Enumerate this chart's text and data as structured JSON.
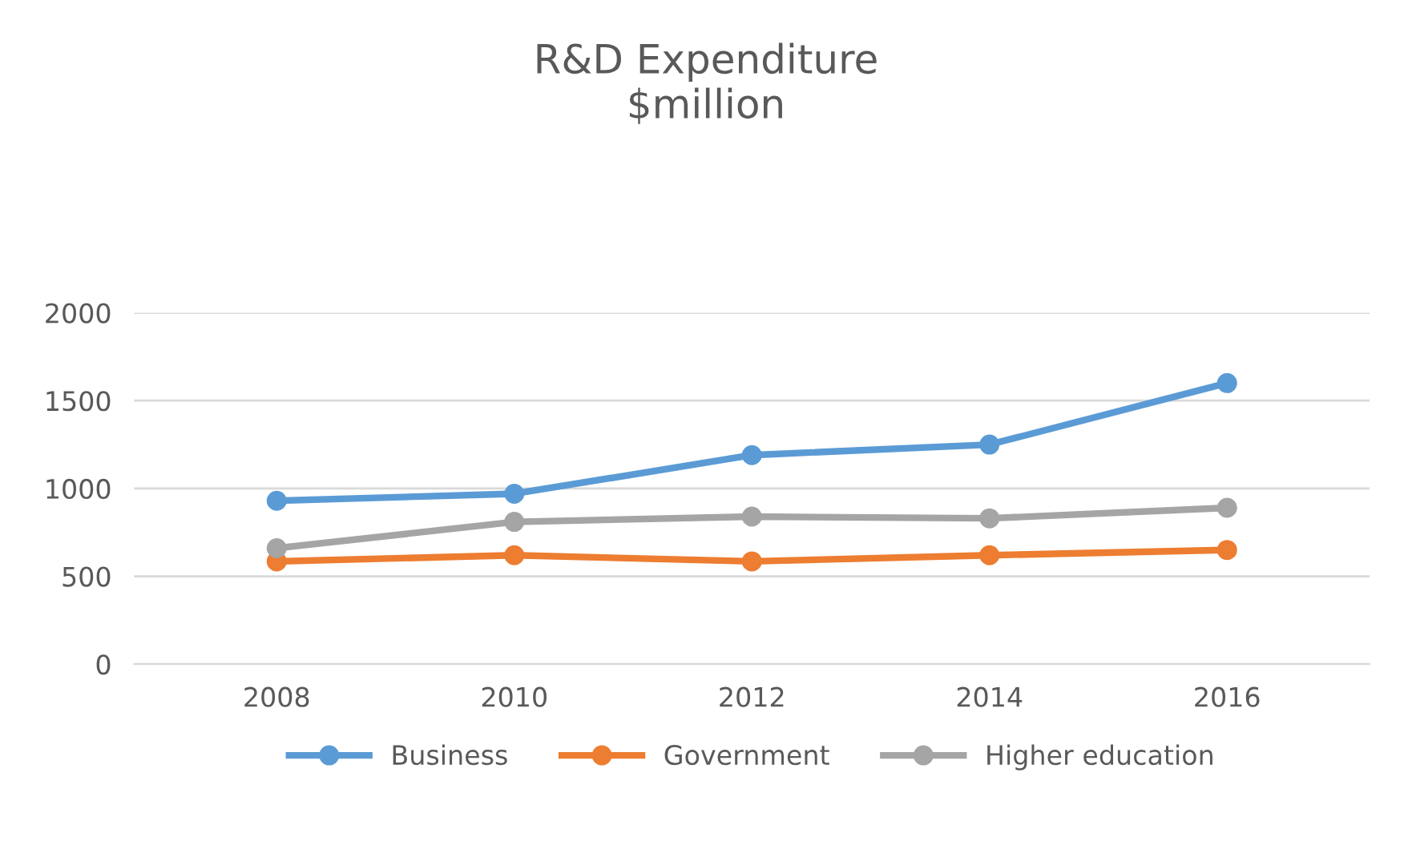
{
  "chart_data": {
    "type": "line",
    "title": "R&D Expenditure\n$million",
    "categories": [
      "2008",
      "2010",
      "2012",
      "2014",
      "2016"
    ],
    "series": [
      {
        "name": "Business",
        "color": "#5b9bd5",
        "values": [
          930,
          970,
          1190,
          1250,
          1600
        ]
      },
      {
        "name": "Government",
        "color": "#ed7d31",
        "values": [
          585,
          620,
          585,
          620,
          650
        ]
      },
      {
        "name": "Higher education",
        "color": "#a5a5a5",
        "values": [
          660,
          810,
          840,
          830,
          890
        ]
      }
    ],
    "ylim": [
      0,
      2000
    ],
    "yticks": [
      0,
      500,
      1000,
      1500,
      2000
    ],
    "grid": "y",
    "legend": "bottom",
    "marker": "circle"
  }
}
